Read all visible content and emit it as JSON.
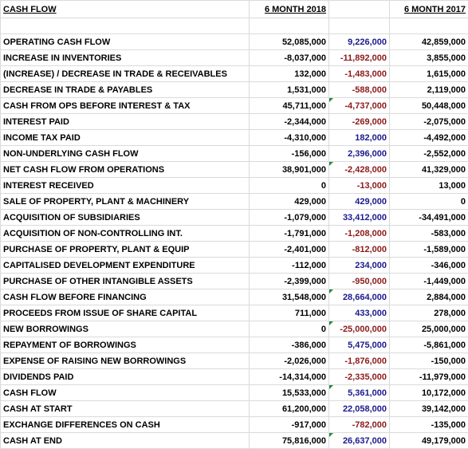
{
  "header": {
    "title": "CASH FLOW",
    "col_2018": "6 MONTH 2018",
    "col_2017": "6 MONTH 2017"
  },
  "rows": [
    [
      "OPERATING CASH FLOW",
      "52,085,000",
      "9,226,000",
      "42,859,000"
    ],
    [
      "INCREASE IN INVENTORIES",
      "-8,037,000",
      "-11,892,000",
      "3,855,000"
    ],
    [
      "(INCREASE) / DECREASE IN TRADE & RECEIVABLES",
      "132,000",
      "-1,483,000",
      "1,615,000"
    ],
    [
      "DECREASE IN TRADE & PAYABLES",
      "1,531,000",
      "-588,000",
      "2,119,000"
    ],
    [
      "CASH FROM OPS BEFORE INTEREST & TAX",
      "45,711,000",
      "-4,737,000",
      "50,448,000"
    ],
    [
      "INTEREST PAID",
      "-2,344,000",
      "-269,000",
      "-2,075,000"
    ],
    [
      "INCOME TAX PAID",
      "-4,310,000",
      "182,000",
      "-4,492,000"
    ],
    [
      "NON-UNDERLYING CASH FLOW",
      "-156,000",
      "2,396,000",
      "-2,552,000"
    ],
    [
      "NET CASH FLOW FROM OPERATIONS",
      "38,901,000",
      "-2,428,000",
      "41,329,000"
    ],
    [
      "INTEREST RECEIVED",
      "0",
      "-13,000",
      "13,000"
    ],
    [
      "SALE OF PROPERTY, PLANT & MACHINERY",
      "429,000",
      "429,000",
      "0"
    ],
    [
      "ACQUISITION OF SUBSIDIARIES",
      "-1,079,000",
      "33,412,000",
      "-34,491,000"
    ],
    [
      "ACQUISITION OF NON-CONTROLLING INT.",
      "-1,791,000",
      "-1,208,000",
      "-583,000"
    ],
    [
      "PURCHASE OF PROPERTY, PLANT & EQUIP",
      "-2,401,000",
      "-812,000",
      "-1,589,000"
    ],
    [
      "CAPITALISED DEVELOPMENT EXPENDITURE",
      "-112,000",
      "234,000",
      "-346,000"
    ],
    [
      "PURCHASE OF OTHER INTANGIBLE ASSETS",
      "-2,399,000",
      "-950,000",
      "-1,449,000"
    ],
    [
      "CASH FLOW BEFORE FINANCING",
      "31,548,000",
      "28,664,000",
      "2,884,000"
    ],
    [
      "PROCEEDS FROM ISSUE OF SHARE CAPITAL",
      "711,000",
      "433,000",
      "278,000"
    ],
    [
      "NEW BORROWINGS",
      "0",
      "-25,000,000",
      "25,000,000"
    ],
    [
      "REPAYMENT OF BORROWINGS",
      "-386,000",
      "5,475,000",
      "-5,861,000"
    ],
    [
      "EXPENSE OF RAISING NEW BORROWINGS",
      "-2,026,000",
      "-1,876,000",
      "-150,000"
    ],
    [
      "DIVIDENDS PAID",
      "-14,314,000",
      "-2,335,000",
      "-11,979,000"
    ],
    [
      "CASH FLOW",
      "15,533,000",
      "5,361,000",
      "10,172,000"
    ],
    [
      "CASH AT START",
      "61,200,000",
      "22,058,000",
      "39,142,000"
    ],
    [
      "EXCHANGE DIFFERENCES ON CASH",
      "-917,000",
      "-782,000",
      "-135,000"
    ],
    [
      "CASH AT END",
      "75,816,000",
      "26,637,000",
      "49,179,000"
    ]
  ]
}
